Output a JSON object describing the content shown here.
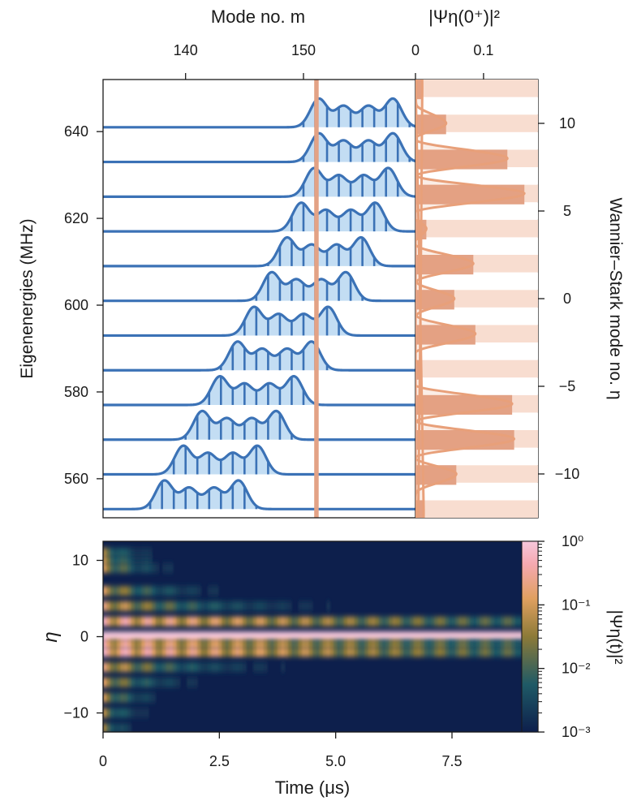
{
  "chart_data": [
    {
      "type": "line",
      "panel": "top",
      "top_xlabel": "Mode no. m",
      "top_xticks": [
        "140",
        "150"
      ],
      "top_xrange": [
        133.0,
        159.5
      ],
      "left_ylabel": "Eigenenergies (MHz)",
      "left_yticks": [
        "560",
        "580",
        "600",
        "620",
        "640"
      ],
      "left_yrange": [
        551,
        652
      ],
      "right_ylabel": "Wannier–Stark mode no. η",
      "right_yticks": [
        "−10",
        "−5",
        "0",
        "5",
        "10"
      ],
      "right_yrange": [
        -12.5,
        12.5
      ],
      "highlight_mode_m": 151.1,
      "series": [
        {
          "energy": 553.0,
          "peaks": [
            [
              138.2,
              1.0
            ],
            [
              140.3,
              0.74
            ],
            [
              142.4,
              0.74
            ],
            [
              144.5,
              1.0
            ]
          ]
        },
        {
          "energy": 561.0,
          "peaks": [
            [
              139.8,
              1.0
            ],
            [
              141.9,
              0.74
            ],
            [
              144.0,
              0.74
            ],
            [
              146.1,
              1.0
            ]
          ]
        },
        {
          "energy": 569.0,
          "peaks": [
            [
              141.4,
              1.0
            ],
            [
              143.5,
              0.74
            ],
            [
              145.6,
              0.74
            ],
            [
              147.7,
              1.0
            ]
          ]
        },
        {
          "energy": 577.0,
          "peaks": [
            [
              142.9,
              1.0
            ],
            [
              145.0,
              0.74
            ],
            [
              147.1,
              0.74
            ],
            [
              149.2,
              1.0
            ]
          ]
        },
        {
          "energy": 585.0,
          "peaks": [
            [
              144.4,
              1.0
            ],
            [
              146.5,
              0.74
            ],
            [
              148.6,
              0.74
            ],
            [
              150.7,
              1.0
            ]
          ]
        },
        {
          "energy": 593.0,
          "peaks": [
            [
              145.8,
              1.0
            ],
            [
              147.9,
              0.74
            ],
            [
              150.0,
              0.74
            ],
            [
              152.1,
              1.0
            ]
          ]
        },
        {
          "energy": 601.0,
          "peaks": [
            [
              147.3,
              1.0
            ],
            [
              149.4,
              0.74
            ],
            [
              151.5,
              0.74
            ],
            [
              153.6,
              1.0
            ]
          ]
        },
        {
          "energy": 609.0,
          "peaks": [
            [
              148.6,
              1.0
            ],
            [
              150.7,
              0.74
            ],
            [
              152.8,
              0.74
            ],
            [
              154.9,
              1.0
            ]
          ]
        },
        {
          "energy": 617.0,
          "peaks": [
            [
              149.8,
              1.0
            ],
            [
              151.9,
              0.74
            ],
            [
              154.0,
              0.74
            ],
            [
              156.1,
              1.0
            ]
          ]
        },
        {
          "energy": 625.0,
          "peaks": [
            [
              150.9,
              1.0
            ],
            [
              153.0,
              0.74
            ],
            [
              155.1,
              0.74
            ],
            [
              157.2,
              1.0
            ]
          ]
        },
        {
          "energy": 633.0,
          "peaks": [
            [
              151.3,
              1.0
            ],
            [
              153.4,
              0.74
            ],
            [
              155.5,
              0.74
            ],
            [
              157.6,
              1.0
            ]
          ]
        },
        {
          "energy": 641.0,
          "peaks": [
            [
              151.3,
              1.0
            ],
            [
              153.4,
              0.74
            ],
            [
              155.5,
              0.74
            ],
            [
              157.6,
              1.0
            ]
          ]
        }
      ]
    },
    {
      "type": "bar",
      "panel": "top-right",
      "title": "|Ψη(0⁺)|²",
      "xticks": [
        "0",
        "0.1"
      ],
      "xrange": [
        0,
        0.18
      ],
      "categories": [
        -12,
        -11,
        -10,
        -9,
        -8,
        -7,
        -6,
        -5,
        -4,
        -3,
        -2,
        -1,
        0,
        1,
        2,
        3,
        4,
        5,
        6,
        7,
        8,
        9,
        10,
        11,
        12
      ],
      "values": [
        0.012,
        0.002,
        0.06,
        0.002,
        0.145,
        0.002,
        0.142,
        0.002,
        0.007,
        0.002,
        0.088,
        0.002,
        0.057,
        0.002,
        0.085,
        0.002,
        0.016,
        0.002,
        0.16,
        0.002,
        0.135,
        0.002,
        0.045,
        0.002,
        0.01
      ],
      "envelope_color": "#e8a07a",
      "bar_color": "#e3a285"
    },
    {
      "type": "heatmap",
      "panel": "bottom",
      "xlabel": "Time (μs)",
      "xticks": [
        "0",
        "2.5",
        "5.0",
        "7.5"
      ],
      "xrange": [
        0,
        9.0
      ],
      "ylabel": "η",
      "yticks": [
        "−10",
        "0",
        "10"
      ],
      "yrange": [
        -12.5,
        12.5
      ],
      "scale": "log",
      "colorbar_label": "|Ψη(t)|²",
      "colorbar_ticks": [
        "10⁰",
        "10⁻¹",
        "10⁻²",
        "10⁻³"
      ],
      "colorbar_range": [
        0.001,
        1
      ],
      "colormap": [
        "#0d1f4c",
        "#1f5a66",
        "#8c7a38",
        "#e0a060",
        "#f5a9b0",
        "#f7c8dc"
      ],
      "rows": [
        {
          "eta": 11,
          "amp": 0.5,
          "decay_us": 0.5
        },
        {
          "eta": 10,
          "amp": 0.55,
          "decay_us": 0.55
        },
        {
          "eta": 9,
          "amp": 0.6,
          "decay_us": 0.7
        },
        {
          "eta": 6,
          "amp": 0.65,
          "decay_us": 1.1
        },
        {
          "eta": 4,
          "amp": 0.7,
          "decay_us": 2.0
        },
        {
          "eta": 2,
          "amp": 0.85,
          "decay_us": 9.0
        },
        {
          "eta": 0,
          "amp": 1.0,
          "decay_us": 1000
        },
        {
          "eta": -1,
          "amp": 0.8,
          "decay_us": 9.0
        },
        {
          "eta": -2,
          "amp": 0.9,
          "decay_us": 9.0
        },
        {
          "eta": -4,
          "amp": 0.7,
          "decay_us": 1.6
        },
        {
          "eta": -6,
          "amp": 0.65,
          "decay_us": 0.9
        },
        {
          "eta": -8,
          "amp": 0.6,
          "decay_us": 0.6
        },
        {
          "eta": -10,
          "amp": 0.55,
          "decay_us": 0.45
        },
        {
          "eta": -12,
          "amp": 0.5,
          "decay_us": 0.35
        }
      ]
    }
  ]
}
